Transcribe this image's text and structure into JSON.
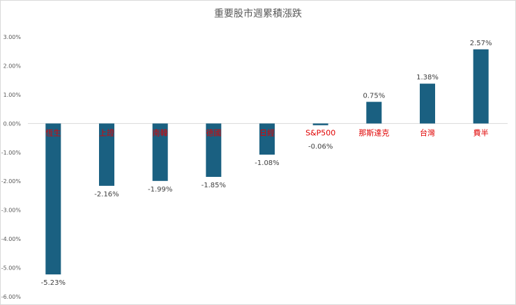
{
  "chart_data": {
    "type": "bar",
    "title": "重要股市週累積漲跌",
    "categories": [
      "恆生",
      "上證",
      "南韓",
      "德國",
      "日經",
      "S&P500",
      "那斯達克",
      "台灣",
      "費半"
    ],
    "values": [
      -5.23,
      -2.16,
      -1.99,
      -1.85,
      -1.08,
      -0.06,
      0.75,
      1.38,
      2.57
    ],
    "data_labels": [
      "-5.23%",
      "-2.16%",
      "-1.99%",
      "-1.85%",
      "-1.08%",
      "-0.06%",
      "0.75%",
      "1.38%",
      "2.57%"
    ],
    "ylim": [
      -6,
      3
    ],
    "yticks": [
      "3.00%",
      "2.00%",
      "1.00%",
      "0.00%",
      "-1.00%",
      "-2.00%",
      "-3.00%",
      "-4.00%",
      "-5.00%",
      "-6.00%"
    ],
    "xlabel": "",
    "ylabel": "",
    "grid": false,
    "colors": {
      "bar": "#1a6081",
      "category_label": "#e00000"
    }
  }
}
